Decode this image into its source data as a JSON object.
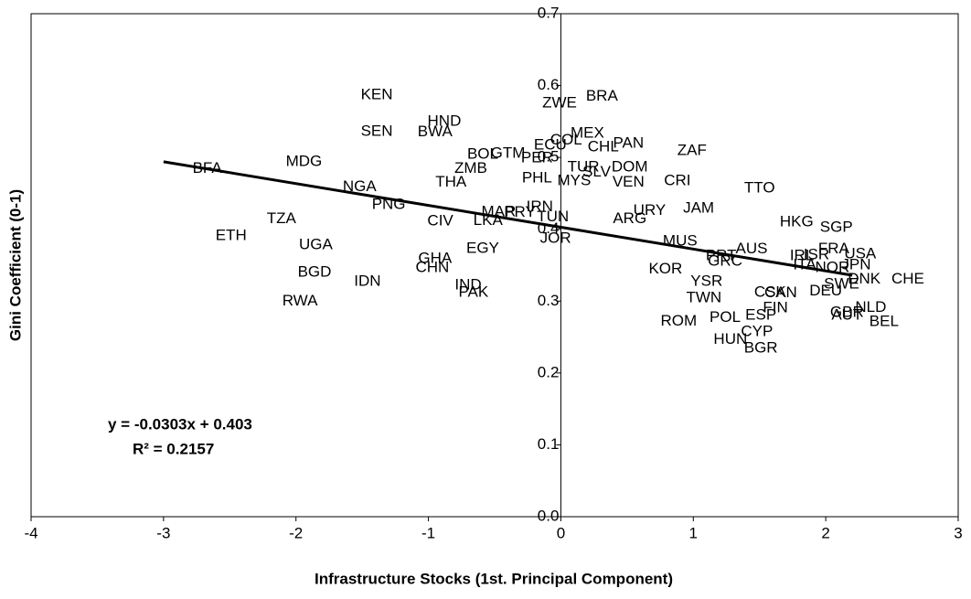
{
  "chart_data": {
    "type": "scatter",
    "x_label": "Infrastructure Stocks (1st. Principal Component)",
    "y_label": "Gini Coefficient (0-1)",
    "xlim": [
      -4,
      3
    ],
    "ylim": [
      0,
      0.7
    ],
    "xticks": [
      -4,
      -3,
      -2,
      -1,
      0,
      1,
      2,
      3
    ],
    "yticks": [
      {
        "value": 0,
        "label": "0.0"
      },
      0.1,
      0.2,
      0.3,
      0.4,
      0.5,
      0.6,
      0.7
    ],
    "labels": [
      "KEN",
      "BRA",
      "ZWE",
      "HND",
      "SEN",
      "BWA",
      "COL",
      "MEX",
      "ECU",
      "PAN",
      "CHL",
      "ZAF",
      "BOL",
      "GTM",
      "PER",
      "MDG",
      "BFA",
      "ZMB",
      "TUR",
      "DOM",
      "SLV",
      "PHL",
      "MYS",
      "VEN",
      "CRI",
      "THA",
      "NGA",
      "TTO",
      "PNG",
      "IRN",
      "URY",
      "JAM",
      "MAR",
      "PRY",
      "TUN",
      "TZA",
      "CIV",
      "LKA",
      "ARG",
      "HKG",
      "SGP",
      "JOR",
      "ETH",
      "MUS",
      "UGA",
      "EGY",
      "FRA",
      "AUS",
      "USA",
      "PRT",
      "IRL",
      "ISR",
      "ITA",
      "JPN",
      "GRC",
      "GHA",
      "NOR",
      "CHN",
      "BGD",
      "KOR",
      "CHE",
      "DNK",
      "SWE",
      "IDN",
      "DEU",
      "YSR",
      "IND",
      "PAK",
      "CAN",
      "CSK",
      "RWA",
      "TWN",
      "NLD",
      "FIN",
      "GBR",
      "AUT",
      "ESP",
      "POL",
      "BEL",
      "ROM",
      "CYP",
      "HUN",
      "BGR"
    ],
    "x": [
      -1.39,
      0.31,
      -0.01,
      -0.88,
      -1.39,
      -0.95,
      0.04,
      0.2,
      -0.08,
      0.51,
      0.32,
      0.99,
      -0.59,
      -0.4,
      -0.18,
      -1.94,
      -2.67,
      -0.68,
      0.17,
      0.52,
      0.27,
      -0.18,
      0.1,
      0.51,
      0.88,
      -0.83,
      -1.52,
      1.5,
      -1.3,
      -0.16,
      0.67,
      1.04,
      -0.47,
      -0.31,
      -0.06,
      -2.11,
      -0.91,
      -0.55,
      0.52,
      1.78,
      2.08,
      -0.04,
      -2.49,
      0.9,
      -1.85,
      -0.59,
      2.06,
      1.44,
      2.26,
      1.21,
      1.82,
      1.93,
      1.84,
      2.23,
      1.24,
      -0.95,
      2.05,
      -0.97,
      -1.86,
      0.79,
      2.62,
      2.29,
      2.12,
      -1.46,
      2.0,
      1.1,
      -0.7,
      -0.66,
      1.66,
      1.58,
      -1.97,
      1.08,
      2.34,
      1.62,
      2.16,
      2.16,
      1.51,
      1.24,
      2.44,
      0.89,
      1.48,
      1.28,
      1.51
    ],
    "values": [
      0.587,
      0.585,
      0.575,
      0.55,
      0.536,
      0.535,
      0.524,
      0.533,
      0.517,
      0.519,
      0.514,
      0.509,
      0.504,
      0.505,
      0.499,
      0.494,
      0.484,
      0.484,
      0.486,
      0.486,
      0.479,
      0.471,
      0.467,
      0.465,
      0.467,
      0.465,
      0.459,
      0.457,
      0.434,
      0.431,
      0.426,
      0.429,
      0.424,
      0.423,
      0.417,
      0.414,
      0.411,
      0.412,
      0.414,
      0.41,
      0.402,
      0.387,
      0.391,
      0.383,
      0.378,
      0.373,
      0.372,
      0.372,
      0.365,
      0.363,
      0.363,
      0.364,
      0.35,
      0.35,
      0.355,
      0.359,
      0.346,
      0.346,
      0.34,
      0.344,
      0.33,
      0.33,
      0.323,
      0.327,
      0.314,
      0.327,
      0.322,
      0.312,
      0.311,
      0.312,
      0.3,
      0.304,
      0.291,
      0.29,
      0.284,
      0.28,
      0.28,
      0.277,
      0.271,
      0.272,
      0.257,
      0.246,
      0.234
    ],
    "trendline": {
      "x": [
        -3,
        2.2
      ],
      "values": [
        0.494,
        0.336
      ]
    },
    "equation": "y = -0.0303x + 0.403",
    "r_squared": "R² = 0.2157"
  }
}
